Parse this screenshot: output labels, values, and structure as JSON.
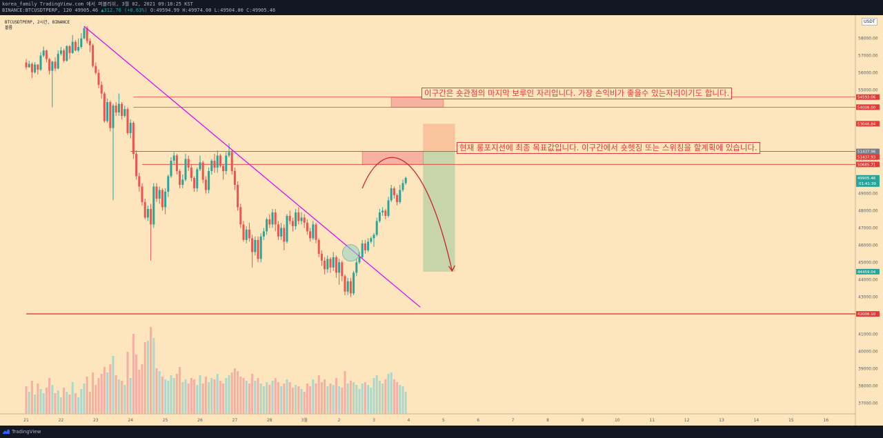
{
  "header": {
    "line1": "korea_family TradingView.com 에서 퍼블리쉬, 3월 02, 2021 09:18:25 KST",
    "pair": "BINANCE:BTCUSDTPERP, 120",
    "price": "49905.46",
    "change": "▲312.76 (+0.63%)",
    "o": "O:49594.99",
    "h": "H:49974.00",
    "l": "L:49504.00",
    "c": "C:49905.46"
  },
  "legend": {
    "symbol": "BTCUSDTPERP, 2시간, BINANCE",
    "volume": "볼륨"
  },
  "currency": "USDT",
  "annotations": {
    "a1": "이구간은 숏관점의 마지막 보루인 자리입니다. 가장 손익비가 좋을수 있는자리이기도 합니다.",
    "a2": "현재 롱포지션에 최종 목표값입니다. 이구간에서 숏헷징 또는 스위칭을 할계획에 있습니다."
  },
  "footer": {
    "brand": "TradingView"
  },
  "colors": {
    "bg": "#fde5bd",
    "up": "#26a69a",
    "down": "#ef5350",
    "trendline": "#d500f9",
    "level": "#e53935"
  },
  "chart_data": {
    "type": "candlestick",
    "y_ticks": [
      42000,
      43000,
      44000,
      45000,
      46000,
      47000,
      48000,
      49000,
      51000,
      53000,
      55000,
      56000,
      57000,
      58000
    ],
    "y_tick_labels": [
      "42000.00",
      "43000.00",
      "44000.00",
      "45000.00",
      "46000.00",
      "47000.00",
      "48000.00",
      "49000.00",
      "51000.00",
      "53000.00",
      "55000.00",
      "56000.00",
      "57000.00",
      "58000.00"
    ],
    "vol_ticks": [
      37000,
      38000,
      39000,
      40000,
      41000
    ],
    "vol_tick_labels": [
      "37000.00",
      "38000.00",
      "39000.00",
      "40000.00",
      "41000.00"
    ],
    "x_ticks": [
      {
        "label": "21",
        "i": 0
      },
      {
        "label": "22",
        "i": 12
      },
      {
        "label": "23",
        "i": 24
      },
      {
        "label": "24",
        "i": 36
      },
      {
        "label": "25",
        "i": 48
      },
      {
        "label": "26",
        "i": 60
      },
      {
        "label": "27",
        "i": 72
      },
      {
        "label": "28",
        "i": 84
      },
      {
        "label": "3월",
        "i": 96
      },
      {
        "label": "2",
        "i": 108
      },
      {
        "label": "3",
        "i": 120
      },
      {
        "label": "4",
        "i": 132
      },
      {
        "label": "5",
        "i": 144
      },
      {
        "label": "6",
        "i": 156
      },
      {
        "label": "7",
        "i": 168
      },
      {
        "label": "8",
        "i": 180
      },
      {
        "label": "9",
        "i": 192
      },
      {
        "label": "10",
        "i": 204
      },
      {
        "label": "11",
        "i": 216
      },
      {
        "label": "12",
        "i": 228
      },
      {
        "label": "13",
        "i": 240
      },
      {
        "label": "14",
        "i": 252
      },
      {
        "label": "15",
        "i": 264
      },
      {
        "label": "16",
        "i": 276
      }
    ],
    "price_tags": [
      {
        "value": 54593.06,
        "label": "54593.06",
        "color": "#e53935"
      },
      {
        "value": 54008.0,
        "label": "54008.00",
        "color": "#e53935"
      },
      {
        "value": 53046.84,
        "label": "53046.84",
        "color": "#e53935"
      },
      {
        "value": 51437.96,
        "label": "51437.96",
        "color": "#787b86"
      },
      {
        "value": 51437.93,
        "label": "51437.93",
        "color": "#e53935"
      },
      {
        "value": 50685.71,
        "label": "50685.71",
        "color": "#e53935"
      },
      {
        "value": 49905.46,
        "label": "49905.46",
        "color": "#26a69a",
        "sub": "01:41:39"
      },
      {
        "value": 44459.04,
        "label": "44459.04",
        "color": "#26a69a"
      },
      {
        "value": 42008.1,
        "label": "42008.10",
        "color": "#e53935"
      }
    ],
    "levels": [
      {
        "from_i": 37,
        "value": 54593.06
      },
      {
        "from_i": 37,
        "value": 54008.0
      },
      {
        "from_i": 36,
        "value": 51437.93
      },
      {
        "from_i": 40,
        "value": 50685.71
      },
      {
        "from_i": 0,
        "value": 42008.1
      }
    ],
    "zones": [
      {
        "i0": 126,
        "i1": 144,
        "lo": 54008.0,
        "hi": 54593.06
      },
      {
        "i0": 116,
        "i1": 137,
        "lo": 50685.71,
        "hi": 51437.93
      }
    ],
    "position": {
      "i0": 137,
      "i1": 148,
      "entry": 51437.93,
      "target": 53046.84,
      "stop": 44459.04
    },
    "trendline": {
      "i0": 20,
      "p0": 58700,
      "i1": 136,
      "p1": 42400
    },
    "circle": {
      "i": 112,
      "p": 45550
    },
    "projected_path": {
      "start_i": 116,
      "start_p": 49300,
      "peak_i": 127,
      "peak_p": 51100,
      "end_i": 147,
      "end_p": 44500
    },
    "candles": [
      [
        56600,
        56320,
        56800,
        56200,
        2.0
      ],
      [
        56320,
        56520,
        56700,
        56300,
        1.6
      ],
      [
        56520,
        56030,
        56600,
        55700,
        2.4
      ],
      [
        56030,
        56480,
        56620,
        55950,
        1.4
      ],
      [
        56480,
        56180,
        56500,
        55900,
        2.2
      ],
      [
        56180,
        57000,
        57200,
        56100,
        1.8
      ],
      [
        57000,
        57300,
        57520,
        56900,
        1.5
      ],
      [
        57300,
        56800,
        57340,
        56600,
        1.9
      ],
      [
        56800,
        56120,
        56850,
        55900,
        2.6
      ],
      [
        56120,
        56650,
        56700,
        54000,
        2.1
      ],
      [
        56650,
        56250,
        56900,
        56100,
        1.5
      ],
      [
        56250,
        57100,
        57300,
        56200,
        1.7
      ],
      [
        57100,
        57300,
        57500,
        57000,
        1.2
      ],
      [
        57300,
        56700,
        57400,
        56600,
        1.9
      ],
      [
        56700,
        57550,
        57600,
        56650,
        1.6
      ],
      [
        57550,
        57150,
        57600,
        56800,
        1.4
      ],
      [
        57150,
        57800,
        58200,
        57100,
        2.3
      ],
      [
        57800,
        57300,
        57900,
        57250,
        1.5
      ],
      [
        57300,
        57500,
        58000,
        57200,
        1.2
      ],
      [
        57500,
        58000,
        58300,
        57400,
        1.8
      ],
      [
        58000,
        58600,
        58700,
        57950,
        2.2
      ],
      [
        58600,
        57850,
        58700,
        57700,
        2.7
      ],
      [
        57850,
        57600,
        58000,
        57200,
        1.6
      ],
      [
        57600,
        56400,
        57700,
        56300,
        3.0
      ],
      [
        56400,
        56000,
        56600,
        55900,
        2.1
      ],
      [
        56000,
        55300,
        56200,
        55100,
        2.6
      ],
      [
        55300,
        54800,
        55500,
        54500,
        2.9
      ],
      [
        54800,
        53200,
        54900,
        53100,
        3.4
      ],
      [
        53200,
        54300,
        54500,
        53100,
        3.0
      ],
      [
        54300,
        52800,
        54400,
        52600,
        3.6
      ],
      [
        52800,
        54100,
        54200,
        48600,
        4.2
      ],
      [
        54100,
        53700,
        54300,
        53500,
        2.8
      ],
      [
        53700,
        54200,
        54800,
        53500,
        2.5
      ],
      [
        54200,
        53500,
        54300,
        53300,
        2.4
      ],
      [
        53500,
        53900,
        54100,
        53400,
        2.1
      ],
      [
        53900,
        52500,
        54000,
        52400,
        4.5
      ],
      [
        52500,
        53100,
        53300,
        52200,
        2.6
      ],
      [
        53100,
        51300,
        53200,
        51000,
        5.8
      ],
      [
        51300,
        50000,
        51500,
        49800,
        4.3
      ],
      [
        50000,
        49400,
        50200,
        49100,
        3.2
      ],
      [
        49400,
        48500,
        49600,
        48300,
        3.6
      ],
      [
        48500,
        47600,
        48700,
        47500,
        5.2
      ],
      [
        47600,
        48100,
        48300,
        47400,
        5.3
      ],
      [
        48100,
        47200,
        48400,
        45100,
        6.3
      ],
      [
        47200,
        49400,
        49600,
        47000,
        5.5
      ],
      [
        49400,
        48700,
        49600,
        48500,
        3.3
      ],
      [
        48700,
        49200,
        49400,
        48400,
        3.1
      ],
      [
        49200,
        48200,
        49300,
        48000,
        2.7
      ],
      [
        48200,
        49100,
        49300,
        47800,
        2.5
      ],
      [
        49100,
        50000,
        50100,
        48800,
        2.4
      ],
      [
        50000,
        50900,
        51100,
        49900,
        2.8
      ],
      [
        50900,
        51200,
        51400,
        50700,
        2.6
      ],
      [
        51200,
        50300,
        51300,
        50100,
        2.9
      ],
      [
        50300,
        49500,
        50400,
        49300,
        3.4
      ],
      [
        49500,
        49800,
        50100,
        49300,
        2.3
      ],
      [
        49800,
        51000,
        51300,
        49700,
        2.5
      ],
      [
        51000,
        50500,
        51200,
        50300,
        2.2
      ],
      [
        50500,
        49900,
        50700,
        49700,
        2.6
      ],
      [
        49900,
        49300,
        50000,
        49100,
        2.5
      ],
      [
        49300,
        50400,
        50500,
        49100,
        2.1
      ],
      [
        50400,
        50800,
        51200,
        50300,
        2.8
      ],
      [
        50800,
        49800,
        50900,
        49600,
        2.2
      ],
      [
        49800,
        49200,
        50000,
        49000,
        2.7
      ],
      [
        49200,
        50300,
        50500,
        49000,
        2.3
      ],
      [
        50300,
        50900,
        51000,
        50100,
        2.6
      ],
      [
        50900,
        50500,
        51300,
        50200,
        2.5
      ],
      [
        50500,
        51200,
        51500,
        50200,
        2.9
      ],
      [
        51200,
        50600,
        51300,
        50500,
        2.4
      ],
      [
        50600,
        50300,
        50700,
        49800,
        2.2
      ],
      [
        50300,
        51200,
        51400,
        50100,
        2.6
      ],
      [
        51200,
        51400,
        51900,
        51100,
        2.8
      ],
      [
        51400,
        50300,
        51500,
        50100,
        3.0
      ],
      [
        50300,
        49500,
        50500,
        49200,
        3.3
      ],
      [
        49500,
        48200,
        49700,
        48000,
        3.1
      ],
      [
        48200,
        47200,
        48400,
        47000,
        2.7
      ],
      [
        47200,
        46300,
        47400,
        46200,
        2.6
      ],
      [
        46300,
        46900,
        47100,
        46100,
        2.4
      ],
      [
        46900,
        46400,
        47300,
        46200,
        2.2
      ],
      [
        46400,
        45600,
        46600,
        44700,
        2.9
      ],
      [
        45600,
        46300,
        46500,
        45400,
        2.4
      ],
      [
        46300,
        45200,
        46500,
        45000,
        2.6
      ],
      [
        45200,
        46500,
        46700,
        45000,
        2.2
      ],
      [
        46500,
        46800,
        47000,
        46300,
        2.0
      ],
      [
        46800,
        47500,
        47600,
        46600,
        2.3
      ],
      [
        47500,
        47200,
        47800,
        47000,
        2.1
      ],
      [
        47200,
        47900,
        48100,
        47000,
        2.4
      ],
      [
        47900,
        47200,
        48100,
        46800,
        2.6
      ],
      [
        47200,
        46500,
        47400,
        46300,
        2.3
      ],
      [
        46500,
        47000,
        47300,
        46300,
        2.0
      ],
      [
        47000,
        46200,
        47200,
        45700,
        2.2
      ],
      [
        46200,
        47700,
        47800,
        46100,
        2.5
      ],
      [
        47700,
        47400,
        48000,
        47200,
        2.3
      ],
      [
        47400,
        47100,
        47600,
        46800,
        1.9
      ],
      [
        47100,
        47900,
        48100,
        46900,
        2.1
      ],
      [
        47900,
        47400,
        48200,
        47200,
        2.0
      ],
      [
        47400,
        47600,
        47900,
        47200,
        1.8
      ],
      [
        47600,
        47300,
        47800,
        47000,
        1.6
      ],
      [
        47300,
        46800,
        47500,
        46600,
        2.2
      ],
      [
        46800,
        46400,
        47000,
        46200,
        2.0
      ],
      [
        46400,
        47200,
        47400,
        46300,
        2.5
      ],
      [
        47200,
        46300,
        47300,
        46100,
        2.2
      ],
      [
        46300,
        45500,
        46400,
        45300,
        2.8
      ],
      [
        45500,
        45100,
        45700,
        44800,
        2.3
      ],
      [
        45100,
        44600,
        45300,
        44300,
        2.5
      ],
      [
        44600,
        45200,
        45400,
        44400,
        2.0
      ],
      [
        45200,
        44700,
        45300,
        44400,
        2.2
      ],
      [
        44700,
        45300,
        45600,
        44500,
        2.1
      ],
      [
        45300,
        44400,
        45400,
        44100,
        2.6
      ],
      [
        44400,
        45000,
        45200,
        43700,
        2.0
      ],
      [
        45000,
        44200,
        45100,
        43900,
        1.9
      ],
      [
        44200,
        43300,
        44300,
        43100,
        3.1
      ],
      [
        43300,
        43900,
        44100,
        43100,
        2.2
      ],
      [
        43900,
        43200,
        44100,
        43000,
        2.4
      ],
      [
        43200,
        44400,
        44500,
        43100,
        2.3
      ],
      [
        44400,
        45000,
        45200,
        44200,
        2.1
      ],
      [
        45000,
        45300,
        45600,
        44900,
        1.8
      ],
      [
        45300,
        46100,
        46300,
        45200,
        2.2
      ],
      [
        46100,
        45700,
        46300,
        45500,
        2.3
      ],
      [
        45700,
        46200,
        46400,
        45600,
        2.1
      ],
      [
        46200,
        46400,
        46500,
        46100,
        1.9
      ],
      [
        46400,
        46600,
        46700,
        45900,
        2.6
      ],
      [
        46600,
        47400,
        47600,
        46500,
        2.8
      ],
      [
        47400,
        47900,
        48100,
        47300,
        2.4
      ],
      [
        47900,
        48000,
        48200,
        47700,
        2.2
      ],
      [
        48000,
        47700,
        48100,
        47500,
        2.5
      ],
      [
        47700,
        48600,
        48800,
        47600,
        2.9
      ],
      [
        48600,
        49300,
        49500,
        48500,
        3.0
      ],
      [
        49300,
        48900,
        49400,
        48700,
        2.5
      ],
      [
        48900,
        48500,
        49000,
        48300,
        2.3
      ],
      [
        48500,
        49200,
        49500,
        48400,
        2.1
      ],
      [
        49200,
        49600,
        49800,
        49100,
        2.0
      ],
      [
        49600,
        49900,
        49975,
        49500,
        1.6
      ]
    ]
  }
}
